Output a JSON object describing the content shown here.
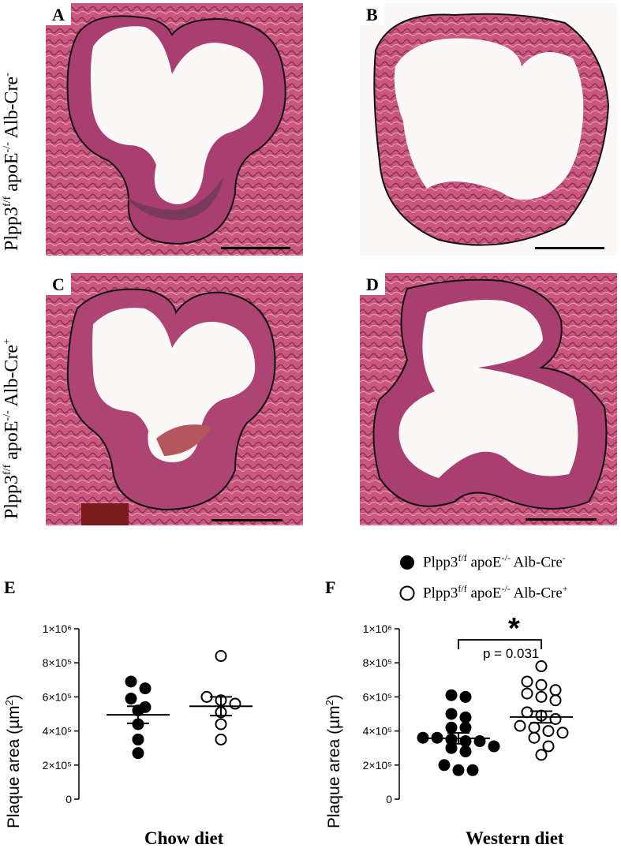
{
  "panels": {
    "A": {
      "letter": "A"
    },
    "B": {
      "letter": "B"
    },
    "C": {
      "letter": "C"
    },
    "D": {
      "letter": "D"
    }
  },
  "row_labels": {
    "top": {
      "prefix": "Plpp3",
      "sup1": "f/f",
      "mid": " apoE",
      "sup2": "-/-",
      "suffix": " Alb-Cre",
      "sup3": "-"
    },
    "bottom": {
      "prefix": "Plpp3",
      "sup1": "f/f",
      "mid": " apoE",
      "sup2": "-/-",
      "suffix": " Alb-Cre",
      "sup3": "+"
    }
  },
  "legend": {
    "neg": {
      "prefix": "Plpp3",
      "sup1": "f/f",
      "mid": " apoE",
      "sup2": "-/-",
      "suffix": " Alb-Cre",
      "sup3": "-"
    },
    "pos": {
      "prefix": "Plpp3",
      "sup1": "f/f",
      "mid": " apoE",
      "sup2": "-/-",
      "suffix": " Alb-Cre",
      "sup3": "+"
    }
  },
  "chart_data": [
    {
      "panel": "E",
      "type": "scatter",
      "xlabel": "Chow diet",
      "ylabel": "Plaque area (µm²)",
      "ylabel_main": "Plaque area (µm",
      "ylabel_sup": "2",
      "ylabel_end": ")",
      "ylim": [
        0,
        1000000
      ],
      "yticks": [
        "0",
        "2×10⁵",
        "4×10⁵",
        "6×10⁵",
        "8×10⁵",
        "1×10⁶"
      ],
      "series": [
        {
          "name": "Plpp3f/f apoE-/- Alb-Cre-",
          "filled": true,
          "values": [
            690000,
            650000,
            590000,
            540000,
            520000,
            440000,
            350000,
            270000
          ],
          "mean": 495000,
          "sem": 50000
        },
        {
          "name": "Plpp3f/f apoE-/- Alb-Cre+",
          "filled": false,
          "values": [
            840000,
            600000,
            580000,
            560000,
            510000,
            440000,
            350000
          ],
          "mean": 545000,
          "sem": 55000
        }
      ]
    },
    {
      "panel": "F",
      "type": "scatter",
      "xlabel": "Western diet",
      "ylabel": "Plaque area (µm²)",
      "ylabel_main": "Plaque area (µm",
      "ylabel_sup": "2",
      "ylabel_end": ")",
      "ylim": [
        0,
        1000000
      ],
      "yticks": [
        "0",
        "2×10⁵",
        "4×10⁵",
        "6×10⁵",
        "8×10⁵",
        "1×10⁶"
      ],
      "annotation": {
        "p_text": "p = 0.031",
        "star": "*"
      },
      "series": [
        {
          "name": "Plpp3f/f apoE-/- Alb-Cre-",
          "filled": true,
          "values": [
            610000,
            600000,
            500000,
            480000,
            420000,
            420000,
            360000,
            360000,
            350000,
            340000,
            340000,
            310000,
            300000,
            280000,
            200000,
            170000,
            170000
          ],
          "mean": 357000,
          "sem": 32000
        },
        {
          "name": "Plpp3f/f apoE-/- Alb-Cre+",
          "filled": false,
          "values": [
            780000,
            690000,
            670000,
            640000,
            620000,
            600000,
            580000,
            510000,
            490000,
            470000,
            430000,
            420000,
            400000,
            390000,
            360000,
            310000,
            260000
          ],
          "mean": 482000,
          "sem": 34000
        }
      ]
    }
  ]
}
